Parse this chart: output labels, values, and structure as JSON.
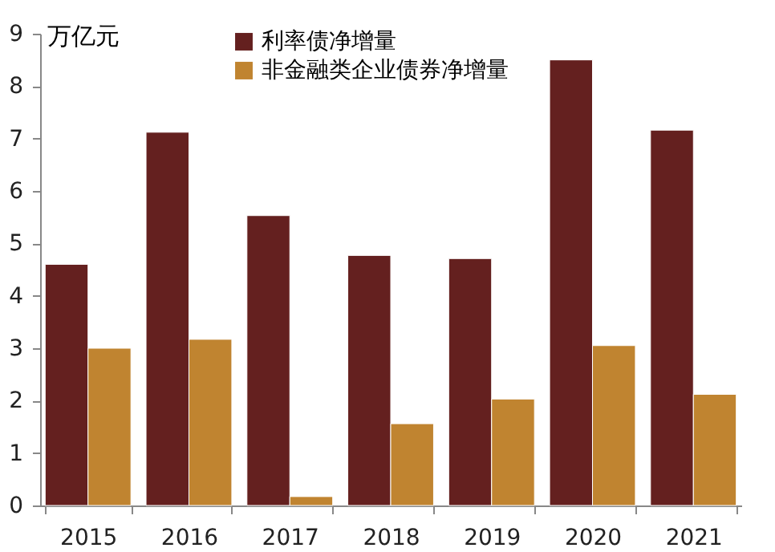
{
  "chart_data": {
    "type": "bar",
    "ylabel": "万亿元",
    "categories": [
      "2015",
      "2016",
      "2017",
      "2018",
      "2019",
      "2020",
      "2021"
    ],
    "series": [
      {
        "name": "利率债净增量",
        "color": "#64201f",
        "values": [
          4.6,
          7.12,
          5.53,
          4.77,
          4.71,
          8.5,
          7.16
        ]
      },
      {
        "name": "非金融类企业债券净增量",
        "color": "#c08430",
        "values": [
          3.0,
          3.17,
          0.17,
          1.56,
          2.03,
          3.05,
          2.12
        ]
      }
    ],
    "ylim": [
      0,
      9
    ],
    "yticks": [
      0,
      1,
      2,
      3,
      4,
      5,
      6,
      7,
      8,
      9
    ],
    "grid": false,
    "legend": "top"
  }
}
